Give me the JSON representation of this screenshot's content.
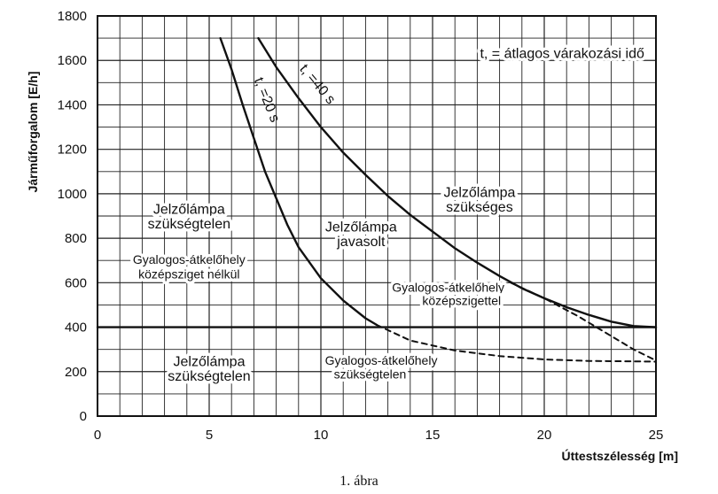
{
  "chart_data": {
    "type": "line",
    "title": "",
    "xlabel": "Úttestszélesség [m]",
    "ylabel": "Járműforgalom [E/h]",
    "xlim": [
      0,
      25
    ],
    "ylim": [
      0,
      1800
    ],
    "xticks": [
      0,
      5,
      10,
      15,
      20,
      25
    ],
    "yticks": [
      0,
      200,
      400,
      600,
      800,
      1000,
      1200,
      1400,
      1600,
      1800
    ],
    "grid": true,
    "series": [
      {
        "name": "t_v=20 s",
        "style": "solid",
        "x": [
          5.5,
          6.0,
          6.5,
          7.0,
          7.5,
          8.0,
          8.5,
          9.0,
          10.0,
          11.0,
          12.0,
          12.5
        ],
        "y": [
          1700,
          1560,
          1400,
          1250,
          1100,
          980,
          860,
          760,
          620,
          520,
          440,
          410
        ]
      },
      {
        "name": "",
        "style": "dashed",
        "x": [
          12.5,
          14.0,
          16.0,
          18.0,
          20.0,
          22.0,
          24.0,
          25.0
        ],
        "y": [
          410,
          340,
          295,
          270,
          255,
          248,
          246,
          245
        ]
      },
      {
        "name": "t_v=40 s",
        "style": "solid",
        "x": [
          7.2,
          8.0,
          9.0,
          10.0,
          11.0,
          12.0,
          13.0,
          14.0,
          15.0,
          16.0,
          17.0,
          18.0,
          19.0,
          20.0,
          21.0,
          22.0,
          23.0,
          24.0,
          25.0
        ],
        "y": [
          1700,
          1570,
          1430,
          1300,
          1185,
          1085,
          990,
          905,
          830,
          755,
          690,
          630,
          575,
          530,
          490,
          455,
          425,
          405,
          400
        ]
      },
      {
        "name": "",
        "style": "dashed",
        "x": [
          18.5,
          20.0,
          21.5,
          23.0,
          24.0,
          25.0
        ],
        "y": [
          600,
          530,
          450,
          360,
          300,
          250
        ]
      },
      {
        "name": "",
        "style": "solid",
        "x": [
          0,
          25
        ],
        "y": [
          400,
          400
        ]
      }
    ],
    "annotations": [
      {
        "id": "legend",
        "text": "t, = átlagos várakozási idő",
        "x": 20.8,
        "y": 1610,
        "anchor": "middle",
        "rotate": 0,
        "size": "normal"
      },
      {
        "id": "curve40",
        "text": "t, =40 s",
        "x": 9.7,
        "y": 1480,
        "anchor": "middle",
        "rotate": 50,
        "size": "normal"
      },
      {
        "id": "curve20",
        "text": "t, =20 s",
        "x": 7.4,
        "y": 1415,
        "anchor": "middle",
        "rotate": 68,
        "size": "normal"
      },
      {
        "id": "a1",
        "text": "Jelzőlámpa",
        "x": 17.1,
        "y": 985,
        "anchor": "middle",
        "rotate": 0,
        "size": "normal"
      },
      {
        "id": "a2",
        "text": "szükséges",
        "x": 17.1,
        "y": 920,
        "anchor": "middle",
        "rotate": 0,
        "size": "normal"
      },
      {
        "id": "a3",
        "text": "Jelzőlámpa",
        "x": 4.1,
        "y": 910,
        "anchor": "middle",
        "rotate": 0,
        "size": "normal"
      },
      {
        "id": "a4",
        "text": "szükségtelen",
        "x": 4.1,
        "y": 845,
        "anchor": "middle",
        "rotate": 0,
        "size": "normal"
      },
      {
        "id": "a5",
        "text": "Jelzőlámpa",
        "x": 11.8,
        "y": 830,
        "anchor": "middle",
        "rotate": 0,
        "size": "normal"
      },
      {
        "id": "a6",
        "text": "javasolt",
        "x": 11.8,
        "y": 765,
        "anchor": "middle",
        "rotate": 0,
        "size": "normal"
      },
      {
        "id": "a7",
        "text": "Gyalogos-átkelőhely",
        "x": 4.1,
        "y": 685,
        "anchor": "middle",
        "rotate": 0,
        "size": "small"
      },
      {
        "id": "a8",
        "text": "középsziget nélkül",
        "x": 4.1,
        "y": 620,
        "anchor": "middle",
        "rotate": 0,
        "size": "small"
      },
      {
        "id": "a9",
        "text": "Gyalogos-átkelőhely",
        "x": 15.7,
        "y": 560,
        "anchor": "middle",
        "rotate": 0,
        "size": "small"
      },
      {
        "id": "a10",
        "text": "középszigettel",
        "x": 16.3,
        "y": 500,
        "anchor": "middle",
        "rotate": 0,
        "size": "small"
      },
      {
        "id": "a11",
        "text": "Jelzőlámpa",
        "x": 5.0,
        "y": 225,
        "anchor": "middle",
        "rotate": 0,
        "size": "normal"
      },
      {
        "id": "a12",
        "text": "szükségtelen",
        "x": 5.0,
        "y": 160,
        "anchor": "middle",
        "rotate": 0,
        "size": "normal"
      },
      {
        "id": "a13",
        "text": "Gyalogos-átkelőhely",
        "x": 12.7,
        "y": 230,
        "anchor": "middle",
        "rotate": 0,
        "size": "small"
      },
      {
        "id": "a14",
        "text": "szükségtelen",
        "x": 12.2,
        "y": 170,
        "anchor": "middle",
        "rotate": 0,
        "size": "small"
      }
    ]
  },
  "caption": "1. ábra"
}
